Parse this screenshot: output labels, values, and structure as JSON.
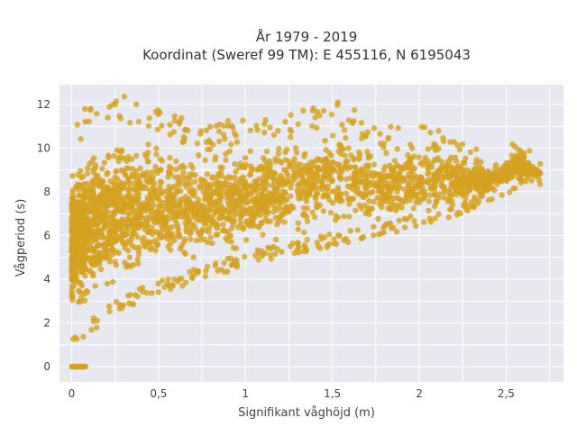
{
  "chart_data": {
    "type": "scatter",
    "title_lines": [
      "År 1979 - 2019",
      "Koordinat (Sweref 99 TM): E 455116, N 6195043"
    ],
    "xlabel": "Signifikant våghöjd (m)",
    "ylabel": "Vågperiod (s)",
    "xlim": [
      -0.07,
      2.83
    ],
    "ylim": [
      -0.7,
      12.9
    ],
    "xticks": [
      0,
      0.5,
      1,
      1.5,
      2,
      2.5
    ],
    "xtick_labels": [
      "0",
      "0,5",
      "1",
      "1,5",
      "2",
      "2,5"
    ],
    "yticks": [
      0,
      2,
      4,
      6,
      8,
      10,
      12
    ],
    "ytick_labels": [
      "0",
      "2",
      "4",
      "6",
      "8",
      "10",
      "12"
    ],
    "grid": true,
    "legend": "none",
    "marker_color": "#D4A220",
    "background_color": "#E8E8F0",
    "envelope": [
      {
        "x": 0.0,
        "y_min": 1.0,
        "y_max": 11.0
      },
      {
        "x": 0.05,
        "y_min": 1.1,
        "y_max": 11.5
      },
      {
        "x": 0.1,
        "y_min": 1.5,
        "y_max": 12.2
      },
      {
        "x": 0.2,
        "y_min": 2.1,
        "y_max": 12.2
      },
      {
        "x": 0.3,
        "y_min": 2.6,
        "y_max": 12.4
      },
      {
        "x": 0.4,
        "y_min": 3.0,
        "y_max": 12.0
      },
      {
        "x": 0.5,
        "y_min": 3.3,
        "y_max": 12.0
      },
      {
        "x": 0.6,
        "y_min": 3.6,
        "y_max": 11.5
      },
      {
        "x": 0.8,
        "y_min": 4.1,
        "y_max": 11.0
      },
      {
        "x": 1.0,
        "y_min": 4.6,
        "y_max": 11.5
      },
      {
        "x": 1.2,
        "y_min": 5.0,
        "y_max": 11.5
      },
      {
        "x": 1.5,
        "y_min": 5.5,
        "y_max": 12.3
      },
      {
        "x": 1.8,
        "y_min": 6.0,
        "y_max": 11.0
      },
      {
        "x": 2.0,
        "y_min": 6.4,
        "y_max": 11.2
      },
      {
        "x": 2.2,
        "y_min": 6.9,
        "y_max": 10.5
      },
      {
        "x": 2.4,
        "y_min": 7.5,
        "y_max": 9.7
      },
      {
        "x": 2.6,
        "y_min": 8.3,
        "y_max": 10.4
      },
      {
        "x": 2.7,
        "y_min": 8.7,
        "y_max": 8.9
      }
    ],
    "zero_period_points": {
      "x_range": [
        0.0,
        0.08
      ],
      "y": 0
    }
  }
}
